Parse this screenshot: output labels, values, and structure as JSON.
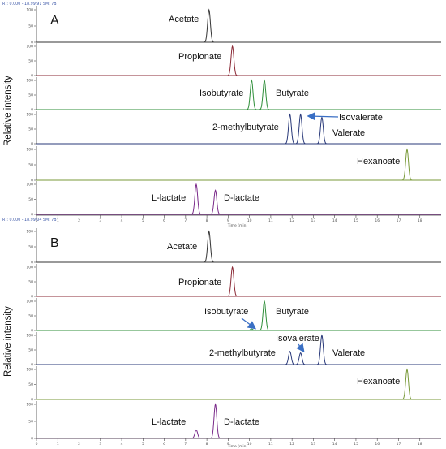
{
  "chart_data": [
    {
      "type": "line",
      "panel_label": "A",
      "header": "RT: 0.000 - 18.99 91   SM: 7B",
      "ylabel": "Relative intensity",
      "xlabel": "Time (min)",
      "xlim": [
        0,
        19
      ],
      "x_ticks": [
        0,
        1,
        2,
        3,
        4,
        5,
        6,
        7,
        8,
        9,
        10,
        11,
        12,
        13,
        14,
        15,
        16,
        17,
        18
      ],
      "y_ticks": [
        0,
        50,
        100
      ],
      "traces": [
        {
          "color": "#333333",
          "peaks": [
            {
              "name": "Acetate",
              "rt": 8.1,
              "height": 100
            }
          ]
        },
        {
          "color": "#8b2a36",
          "peaks": [
            {
              "name": "Propionate",
              "rt": 9.2,
              "height": 100
            }
          ]
        },
        {
          "color": "#2f8f3a",
          "peaks": [
            {
              "name": "Isobutyrate",
              "rt": 10.1,
              "height": 100
            },
            {
              "name": "Butyrate",
              "rt": 10.7,
              "height": 100
            }
          ]
        },
        {
          "color": "#2a3a7a",
          "peaks": [
            {
              "name": "2-methylbutyrate",
              "rt": 11.9,
              "height": 100
            },
            {
              "name": "Isovalerate",
              "rt": 12.4,
              "height": 100
            },
            {
              "name": "Valerate",
              "rt": 13.4,
              "height": 90
            }
          ]
        },
        {
          "color": "#7a9a3a",
          "peaks": [
            {
              "name": "Hexanoate",
              "rt": 17.4,
              "height": 100
            }
          ]
        },
        {
          "color": "#7a2a8a",
          "peaks": [
            {
              "name": "L-lactate",
              "rt": 7.5,
              "height": 100
            },
            {
              "name": "D-lactate",
              "rt": 8.4,
              "height": 80
            }
          ]
        }
      ]
    },
    {
      "type": "line",
      "panel_label": "B",
      "header": "RT: 0.000 - 18.99 04   SM: 7B",
      "ylabel": "Relative intensity",
      "xlabel": "Time (min)",
      "xlim": [
        0,
        19
      ],
      "x_ticks": [
        0,
        1,
        2,
        3,
        4,
        5,
        6,
        7,
        8,
        9,
        10,
        11,
        12,
        13,
        14,
        15,
        16,
        17,
        18
      ],
      "y_ticks": [
        0,
        50,
        100
      ],
      "traces": [
        {
          "color": "#333333",
          "peaks": [
            {
              "name": "Acetate",
              "rt": 8.1,
              "height": 100
            }
          ]
        },
        {
          "color": "#8b2a36",
          "peaks": [
            {
              "name": "Propionate",
              "rt": 9.2,
              "height": 100
            }
          ]
        },
        {
          "color": "#2f8f3a",
          "peaks": [
            {
              "name": "Isobutyrate",
              "rt": 10.1,
              "height": 5
            },
            {
              "name": "Butyrate",
              "rt": 10.7,
              "height": 100
            }
          ]
        },
        {
          "color": "#2a3a7a",
          "peaks": [
            {
              "name": "2-methylbutyrate",
              "rt": 11.9,
              "height": 45
            },
            {
              "name": "Isovalerate",
              "rt": 12.4,
              "height": 40
            },
            {
              "name": "Valerate",
              "rt": 13.4,
              "height": 100
            }
          ]
        },
        {
          "color": "#7a9a3a",
          "peaks": [
            {
              "name": "Hexanoate",
              "rt": 17.4,
              "height": 100
            }
          ]
        },
        {
          "color": "#7a2a8a",
          "peaks": [
            {
              "name": "L-lactate",
              "rt": 7.5,
              "height": 25
            },
            {
              "name": "D-lactate",
              "rt": 8.4,
              "height": 100
            }
          ]
        }
      ]
    }
  ]
}
